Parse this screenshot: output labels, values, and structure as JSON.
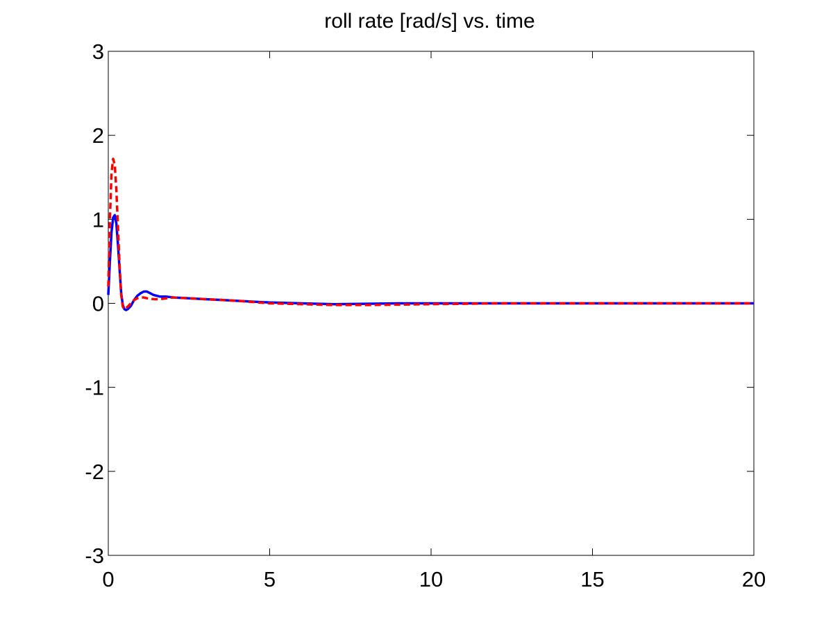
{
  "chart_data": {
    "type": "line",
    "title": "roll rate [rad/s] vs. time",
    "xlabel": "",
    "ylabel": "",
    "xlim": [
      0,
      20
    ],
    "ylim": [
      -3,
      3
    ],
    "grid": false,
    "x_ticks": [
      0,
      5,
      10,
      15,
      20
    ],
    "y_ticks": [
      -3,
      -2,
      -1,
      0,
      1,
      2,
      3
    ],
    "x_tick_labels": [
      "0",
      "5",
      "10",
      "15",
      "20"
    ],
    "y_tick_labels": [
      "-3",
      "-2",
      "-1",
      "0",
      "1",
      "2",
      "3"
    ],
    "series": [
      {
        "color": "#0000ff",
        "style": "solid",
        "x": [
          0,
          0.05,
          0.1,
          0.15,
          0.2,
          0.25,
          0.3,
          0.35,
          0.4,
          0.45,
          0.5,
          0.55,
          0.6,
          0.7,
          0.8,
          0.9,
          1.0,
          1.1,
          1.2,
          1.3,
          1.4,
          1.5,
          1.6,
          1.8,
          2.0,
          2.5,
          3.0,
          3.5,
          4.0,
          4.5,
          5.0,
          6.0,
          7.0,
          8.0,
          9.0,
          10.0,
          12.0,
          14.0,
          16.0,
          18.0,
          20.0
        ],
        "y": [
          0.1,
          0.5,
          0.85,
          1.02,
          1.05,
          0.95,
          0.7,
          0.4,
          0.12,
          -0.02,
          -0.07,
          -0.08,
          -0.07,
          -0.03,
          0.04,
          0.09,
          0.12,
          0.14,
          0.14,
          0.12,
          0.1,
          0.09,
          0.08,
          0.08,
          0.07,
          0.06,
          0.05,
          0.04,
          0.03,
          0.02,
          0.01,
          0.0,
          -0.01,
          -0.005,
          0.0,
          0.0,
          0.0,
          0.0,
          0.0,
          0.0,
          0.0
        ]
      },
      {
        "color": "#ff0000",
        "style": "dashed",
        "x": [
          0,
          0.05,
          0.1,
          0.15,
          0.2,
          0.25,
          0.3,
          0.35,
          0.4,
          0.45,
          0.5,
          0.55,
          0.6,
          0.7,
          0.8,
          0.9,
          1.0,
          1.1,
          1.2,
          1.4,
          1.6,
          1.8,
          2.0,
          2.5,
          3.0,
          3.5,
          4.0,
          5.0,
          6.0,
          7.0,
          8.0,
          9.0,
          10.0,
          11.0,
          12.0,
          14.0,
          16.0,
          18.0,
          20.0
        ],
        "y": [
          0.2,
          1.0,
          1.55,
          1.72,
          1.65,
          1.35,
          0.9,
          0.45,
          0.1,
          -0.04,
          -0.07,
          -0.06,
          -0.04,
          0.0,
          0.04,
          0.06,
          0.07,
          0.07,
          0.06,
          0.05,
          0.05,
          0.06,
          0.07,
          0.06,
          0.05,
          0.04,
          0.03,
          0.0,
          -0.01,
          -0.02,
          -0.02,
          -0.015,
          -0.01,
          -0.005,
          0.0,
          0.0,
          0.0,
          0.0,
          0.0
        ]
      }
    ]
  }
}
